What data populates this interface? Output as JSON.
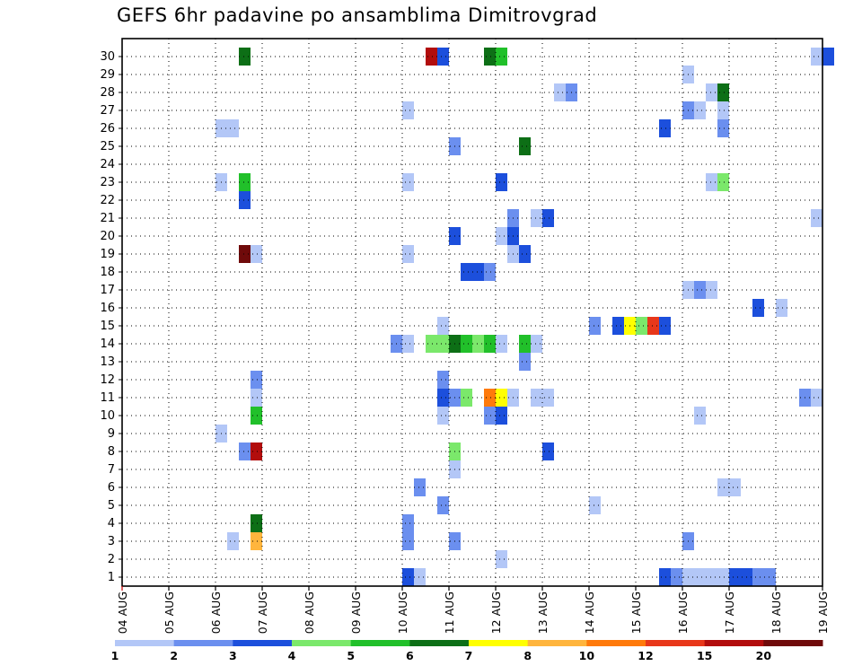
{
  "chart_data": {
    "type": "heatmap",
    "title": "GEFS 6hr padavine po ansamblima Dimitrovgrad",
    "xlabel": "",
    "ylabel": "",
    "x_ticks": [
      "04 AUG",
      "05 AUG",
      "06 AUG",
      "07 AUG",
      "08 AUG",
      "09 AUG",
      "10 AUG",
      "11 AUG",
      "12 AUG",
      "13 AUG",
      "14 AUG",
      "15 AUG",
      "16 AUG",
      "17 AUG",
      "18 AUG",
      "19 AUG"
    ],
    "y_ticks": [
      "1",
      "2",
      "3",
      "4",
      "5",
      "6",
      "7",
      "8",
      "9",
      "10",
      "11",
      "12",
      "13",
      "14",
      "15",
      "16",
      "17",
      "18",
      "19",
      "20",
      "21",
      "22",
      "23",
      "24",
      "25",
      "26",
      "27",
      "28",
      "29",
      "30"
    ],
    "grid": "dotted",
    "colorbar": {
      "labels": [
        "1",
        "2",
        "3",
        "4",
        "5",
        "6",
        "7",
        "8",
        "10",
        "12",
        "15",
        "20"
      ],
      "colors": [
        "#b3c7f7",
        "#6b8fef",
        "#1c4fdc",
        "#7be86b",
        "#21c02a",
        "#0d6f16",
        "#ffff00",
        "#ffb53d",
        "#ff7a0b",
        "#e8371a",
        "#b20d0d",
        "#6f0a0a"
      ]
    },
    "cells": [
      {
        "member": 0,
        "step": 24,
        "value": 3
      },
      {
        "member": 0,
        "step": 25,
        "value": 1
      },
      {
        "member": 0,
        "step": 46,
        "value": 3
      },
      {
        "member": 0,
        "step": 47,
        "value": 2
      },
      {
        "member": 0,
        "step": 48,
        "value": 1
      },
      {
        "member": 0,
        "step": 49,
        "value": 1
      },
      {
        "member": 0,
        "step": 50,
        "value": 1
      },
      {
        "member": 0,
        "step": 51,
        "value": 1
      },
      {
        "member": 0,
        "step": 52,
        "value": 3
      },
      {
        "member": 0,
        "step": 53,
        "value": 3
      },
      {
        "member": 0,
        "step": 54,
        "value": 2
      },
      {
        "member": 0,
        "step": 55,
        "value": 2
      },
      {
        "member": 1,
        "step": 32,
        "value": 1
      },
      {
        "member": 2,
        "step": 9,
        "value": 1
      },
      {
        "member": 2,
        "step": 11,
        "value": 8
      },
      {
        "member": 2,
        "step": 24,
        "value": 2
      },
      {
        "member": 2,
        "step": 28,
        "value": 2
      },
      {
        "member": 2,
        "step": 48,
        "value": 2
      },
      {
        "member": 3,
        "step": 11,
        "value": 6
      },
      {
        "member": 3,
        "step": 24,
        "value": 2
      },
      {
        "member": 4,
        "step": 40,
        "value": 1
      },
      {
        "member": 4,
        "step": 27,
        "value": 2
      },
      {
        "member": 5,
        "step": 25,
        "value": 2
      },
      {
        "member": 5,
        "step": 51,
        "value": 1
      },
      {
        "member": 5,
        "step": 52,
        "value": 1
      },
      {
        "member": 6,
        "step": 28,
        "value": 1
      },
      {
        "member": 7,
        "step": 10,
        "value": 2
      },
      {
        "member": 7,
        "step": 11,
        "value": 15
      },
      {
        "member": 7,
        "step": 28,
        "value": 4
      },
      {
        "member": 7,
        "step": 36,
        "value": 3
      },
      {
        "member": 8,
        "step": 8,
        "value": 1
      },
      {
        "member": 9,
        "step": 11,
        "value": 5
      },
      {
        "member": 9,
        "step": 27,
        "value": 1
      },
      {
        "member": 9,
        "step": 31,
        "value": 2
      },
      {
        "member": 9,
        "step": 32,
        "value": 3
      },
      {
        "member": 9,
        "step": 49,
        "value": 1
      },
      {
        "member": 10,
        "step": 11,
        "value": 1
      },
      {
        "member": 10,
        "step": 27,
        "value": 3
      },
      {
        "member": 10,
        "step": 28,
        "value": 2
      },
      {
        "member": 10,
        "step": 29,
        "value": 4
      },
      {
        "member": 10,
        "step": 31,
        "value": 10
      },
      {
        "member": 10,
        "step": 32,
        "value": 7
      },
      {
        "member": 10,
        "step": 33,
        "value": 1
      },
      {
        "member": 10,
        "step": 35,
        "value": 1
      },
      {
        "member": 10,
        "step": 36,
        "value": 1
      },
      {
        "member": 10,
        "step": 58,
        "value": 2
      },
      {
        "member": 10,
        "step": 59,
        "value": 1
      },
      {
        "member": 11,
        "step": 11,
        "value": 2
      },
      {
        "member": 11,
        "step": 27,
        "value": 2
      },
      {
        "member": 12,
        "step": 34,
        "value": 2
      },
      {
        "member": 13,
        "step": 23,
        "value": 2
      },
      {
        "member": 13,
        "step": 24,
        "value": 1
      },
      {
        "member": 13,
        "step": 26,
        "value": 4
      },
      {
        "member": 13,
        "step": 27,
        "value": 4
      },
      {
        "member": 13,
        "step": 28,
        "value": 6
      },
      {
        "member": 13,
        "step": 29,
        "value": 5
      },
      {
        "member": 13,
        "step": 30,
        "value": 4
      },
      {
        "member": 13,
        "step": 31,
        "value": 5
      },
      {
        "member": 13,
        "step": 32,
        "value": 1
      },
      {
        "member": 13,
        "step": 34,
        "value": 5
      },
      {
        "member": 13,
        "step": 35,
        "value": 1
      },
      {
        "member": 14,
        "step": 27,
        "value": 1
      },
      {
        "member": 14,
        "step": 40,
        "value": 2
      },
      {
        "member": 14,
        "step": 42,
        "value": 3
      },
      {
        "member": 14,
        "step": 43,
        "value": 7
      },
      {
        "member": 14,
        "step": 44,
        "value": 4
      },
      {
        "member": 14,
        "step": 45,
        "value": 12
      },
      {
        "member": 14,
        "step": 46,
        "value": 3
      },
      {
        "member": 15,
        "step": 54,
        "value": 3
      },
      {
        "member": 15,
        "step": 56,
        "value": 1
      },
      {
        "member": 16,
        "step": 48,
        "value": 1
      },
      {
        "member": 16,
        "step": 49,
        "value": 2
      },
      {
        "member": 16,
        "step": 50,
        "value": 1
      },
      {
        "member": 17,
        "step": 29,
        "value": 3
      },
      {
        "member": 17,
        "step": 30,
        "value": 3
      },
      {
        "member": 17,
        "step": 31,
        "value": 2
      },
      {
        "member": 18,
        "step": 10,
        "value": 20
      },
      {
        "member": 18,
        "step": 11,
        "value": 1
      },
      {
        "member": 18,
        "step": 24,
        "value": 1
      },
      {
        "member": 18,
        "step": 33,
        "value": 1
      },
      {
        "member": 18,
        "step": 34,
        "value": 3
      },
      {
        "member": 19,
        "step": 28,
        "value": 3
      },
      {
        "member": 19,
        "step": 32,
        "value": 1
      },
      {
        "member": 19,
        "step": 33,
        "value": 3
      },
      {
        "member": 20,
        "step": 33,
        "value": 2
      },
      {
        "member": 20,
        "step": 35,
        "value": 1
      },
      {
        "member": 20,
        "step": 36,
        "value": 3
      },
      {
        "member": 20,
        "step": 59,
        "value": 1
      },
      {
        "member": 21,
        "step": 10,
        "value": 3
      },
      {
        "member": 22,
        "step": 8,
        "value": 1
      },
      {
        "member": 22,
        "step": 10,
        "value": 5
      },
      {
        "member": 22,
        "step": 24,
        "value": 1
      },
      {
        "member": 22,
        "step": 32,
        "value": 3
      },
      {
        "member": 22,
        "step": 50,
        "value": 1
      },
      {
        "member": 22,
        "step": 51,
        "value": 4
      },
      {
        "member": 24,
        "step": 28,
        "value": 2
      },
      {
        "member": 24,
        "step": 34,
        "value": 6
      },
      {
        "member": 25,
        "step": 8,
        "value": 1
      },
      {
        "member": 25,
        "step": 9,
        "value": 1
      },
      {
        "member": 25,
        "step": 46,
        "value": 3
      },
      {
        "member": 25,
        "step": 51,
        "value": 2
      },
      {
        "member": 26,
        "step": 24,
        "value": 1
      },
      {
        "member": 26,
        "step": 48,
        "value": 2
      },
      {
        "member": 26,
        "step": 49,
        "value": 1
      },
      {
        "member": 26,
        "step": 51,
        "value": 1
      },
      {
        "member": 27,
        "step": 37,
        "value": 1
      },
      {
        "member": 27,
        "step": 38,
        "value": 2
      },
      {
        "member": 27,
        "step": 50,
        "value": 1
      },
      {
        "member": 27,
        "step": 51,
        "value": 6
      },
      {
        "member": 28,
        "step": 48,
        "value": 1
      },
      {
        "member": 29,
        "step": 10,
        "value": 6
      },
      {
        "member": 29,
        "step": 26,
        "value": 15
      },
      {
        "member": 29,
        "step": 27,
        "value": 3
      },
      {
        "member": 29,
        "step": 31,
        "value": 6
      },
      {
        "member": 29,
        "step": 32,
        "value": 5
      },
      {
        "member": 29,
        "step": 59,
        "value": 1
      },
      {
        "member": 29,
        "step": 60,
        "value": 3
      }
    ]
  }
}
